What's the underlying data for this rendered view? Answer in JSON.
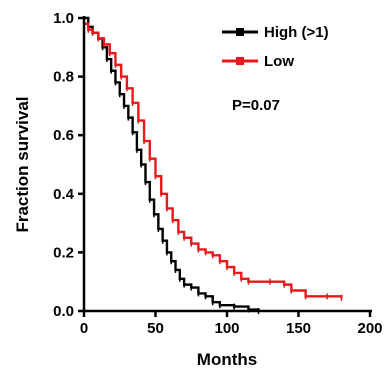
{
  "chart_data": {
    "type": "line",
    "step": true,
    "title": "",
    "xlabel": "Months",
    "ylabel": "Fraction survival",
    "xlim": [
      0,
      200
    ],
    "ylim": [
      0.0,
      1.0
    ],
    "xticks": [
      0,
      50,
      100,
      150,
      200
    ],
    "xtick_labels": [
      "0",
      "50",
      "100",
      "150",
      "200"
    ],
    "yticks": [
      0.0,
      0.2,
      0.4,
      0.6,
      0.8,
      1.0
    ],
    "ytick_labels": [
      "0.0",
      "0.2",
      "0.4",
      "0.6",
      "0.8",
      "1.0"
    ],
    "grid": false,
    "legend_position": "top-right",
    "annotation": "P=0.07",
    "series": [
      {
        "name": "High (>1)",
        "color": "#000000",
        "points": [
          [
            0,
            1.0
          ],
          [
            3,
            0.97
          ],
          [
            6,
            0.95
          ],
          [
            10,
            0.93
          ],
          [
            13,
            0.9
          ],
          [
            16,
            0.86
          ],
          [
            19,
            0.82
          ],
          [
            22,
            0.78
          ],
          [
            25,
            0.74
          ],
          [
            28,
            0.7
          ],
          [
            31,
            0.66
          ],
          [
            34,
            0.61
          ],
          [
            37,
            0.55
          ],
          [
            40,
            0.5
          ],
          [
            43,
            0.44
          ],
          [
            46,
            0.38
          ],
          [
            49,
            0.33
          ],
          [
            52,
            0.28
          ],
          [
            55,
            0.24
          ],
          [
            58,
            0.2
          ],
          [
            61,
            0.17
          ],
          [
            64,
            0.14
          ],
          [
            67,
            0.11
          ],
          [
            70,
            0.09
          ],
          [
            75,
            0.08
          ],
          [
            80,
            0.06
          ],
          [
            85,
            0.05
          ],
          [
            90,
            0.03
          ],
          [
            95,
            0.02
          ],
          [
            105,
            0.015
          ],
          [
            115,
            0.005
          ],
          [
            122,
            0.0
          ]
        ]
      },
      {
        "name": "Low",
        "color": "#e8191c",
        "points": [
          [
            0,
            0.98
          ],
          [
            3,
            0.96
          ],
          [
            6,
            0.95
          ],
          [
            10,
            0.93
          ],
          [
            14,
            0.91
          ],
          [
            18,
            0.88
          ],
          [
            22,
            0.84
          ],
          [
            26,
            0.8
          ],
          [
            30,
            0.76
          ],
          [
            34,
            0.71
          ],
          [
            38,
            0.65
          ],
          [
            42,
            0.58
          ],
          [
            46,
            0.52
          ],
          [
            50,
            0.46
          ],
          [
            54,
            0.4
          ],
          [
            58,
            0.35
          ],
          [
            62,
            0.31
          ],
          [
            66,
            0.27
          ],
          [
            70,
            0.25
          ],
          [
            75,
            0.23
          ],
          [
            80,
            0.21
          ],
          [
            85,
            0.2
          ],
          [
            90,
            0.19
          ],
          [
            95,
            0.17
          ],
          [
            100,
            0.15
          ],
          [
            105,
            0.13
          ],
          [
            110,
            0.11
          ],
          [
            115,
            0.1
          ],
          [
            130,
            0.1
          ],
          [
            140,
            0.09
          ],
          [
            145,
            0.07
          ],
          [
            155,
            0.05
          ],
          [
            170,
            0.05
          ],
          [
            180,
            0.045
          ]
        ]
      }
    ]
  }
}
